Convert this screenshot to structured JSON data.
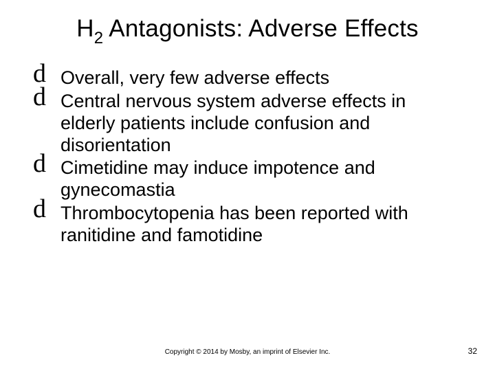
{
  "title_pre": "H",
  "title_sub": "2",
  "title_post": " Antagonists: Adverse Effects",
  "bullets": [
    "Overall, very few adverse effects",
    "Central nervous system adverse effects in elderly patients include confusion and disorientation",
    "Cimetidine may induce impotence and gynecomastia",
    "Thrombocytopenia has been reported with ranitidine and famotidine"
  ],
  "bullet_marker": "d",
  "footer": "Copyright © 2014 by Mosby, an imprint of Elsevier Inc.",
  "page_number": "32",
  "colors": {
    "background": "#ffffff",
    "text": "#000000"
  },
  "fontsizes": {
    "title": 35,
    "title_sub": 24,
    "body": 27,
    "footer": 10,
    "page_num": 12
  }
}
